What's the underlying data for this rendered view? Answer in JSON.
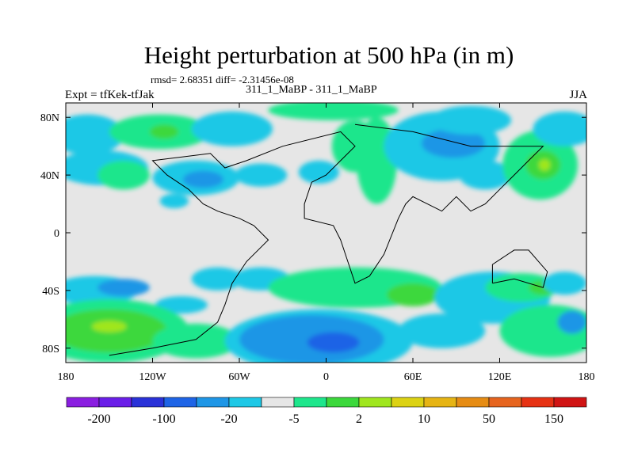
{
  "title": "Height perturbation at 500 hPa (in m)",
  "stats_text": "rmsd= 2.68351 diff= -2.31456e-08",
  "subtitle": "311_1_MaBP - 311_1_MaBP",
  "left_label": "Expt = tfKek-tfJak",
  "right_label": "JJA",
  "chart_data": {
    "type": "heatmap",
    "title": "Height perturbation at 500 hPa (in m)",
    "x_ticks": [
      "180",
      "120W",
      "60W",
      "0",
      "60E",
      "120E",
      "180"
    ],
    "x_values": [
      -180,
      -120,
      -60,
      0,
      60,
      120,
      180
    ],
    "y_ticks": [
      "80N",
      "40N",
      "0",
      "40S",
      "80S"
    ],
    "y_values": [
      80,
      40,
      0,
      -40,
      -80
    ],
    "xlim": [
      -180,
      180
    ],
    "ylim": [
      -90,
      90
    ],
    "colorbar_labels": [
      "-200",
      "-100",
      "-20",
      "-5",
      "2",
      "10",
      "50",
      "150"
    ],
    "colorbar_colors": [
      "#8a1ee0",
      "#6a1ee8",
      "#2a32d8",
      "#1e64e6",
      "#1e96e6",
      "#1ec8e6",
      "#e6e6e6",
      "#1ee68c",
      "#3cd83c",
      "#a0e61e",
      "#dcd214",
      "#e6b414",
      "#e68c14",
      "#e6641e",
      "#e63214",
      "#d01414"
    ],
    "zero_color": "#e6e6e6",
    "blobs": [
      {
        "lon": -165,
        "lat": 68,
        "rx": 25,
        "ry": 14,
        "color": "#1ec8e6"
      },
      {
        "lon": -115,
        "lat": 70,
        "rx": 35,
        "ry": 12,
        "color": "#1ee68c"
      },
      {
        "lon": -112,
        "lat": 70,
        "rx": 10,
        "ry": 5,
        "color": "#3cd83c"
      },
      {
        "lon": -65,
        "lat": 72,
        "rx": 28,
        "ry": 12,
        "color": "#1ec8e6"
      },
      {
        "lon": -155,
        "lat": 45,
        "rx": 32,
        "ry": 12,
        "color": "#1ec8e6"
      },
      {
        "lon": -140,
        "lat": 40,
        "rx": 18,
        "ry": 10,
        "color": "#1ee68c"
      },
      {
        "lon": -90,
        "lat": 38,
        "rx": 30,
        "ry": 12,
        "color": "#1ec8e6"
      },
      {
        "lon": -85,
        "lat": 37,
        "rx": 14,
        "ry": 6,
        "color": "#1e96e6"
      },
      {
        "lon": -45,
        "lat": 40,
        "rx": 18,
        "ry": 8,
        "color": "#1ec8e6"
      },
      {
        "lon": -105,
        "lat": 22,
        "rx": 10,
        "ry": 5,
        "color": "#1ec8e6"
      },
      {
        "lon": 5,
        "lat": 85,
        "rx": 45,
        "ry": 7,
        "color": "#1ee68c"
      },
      {
        "lon": 20,
        "lat": 60,
        "rx": 16,
        "ry": 18,
        "color": "#1ee68c"
      },
      {
        "lon": 35,
        "lat": 50,
        "rx": 14,
        "ry": 30,
        "color": "#1ee68c"
      },
      {
        "lon": -5,
        "lat": 42,
        "rx": 14,
        "ry": 8,
        "color": "#1ec8e6"
      },
      {
        "lon": 80,
        "lat": 60,
        "rx": 40,
        "ry": 24,
        "color": "#1ec8e6"
      },
      {
        "lon": 88,
        "lat": 62,
        "rx": 22,
        "ry": 10,
        "color": "#1e96e6"
      },
      {
        "lon": 100,
        "lat": 78,
        "rx": 28,
        "ry": 10,
        "color": "#1ec8e6"
      },
      {
        "lon": 110,
        "lat": 40,
        "rx": 18,
        "ry": 10,
        "color": "#1ec8e6"
      },
      {
        "lon": 148,
        "lat": 47,
        "rx": 26,
        "ry": 24,
        "color": "#1ee68c"
      },
      {
        "lon": 150,
        "lat": 47,
        "rx": 12,
        "ry": 10,
        "color": "#3cd83c"
      },
      {
        "lon": 151,
        "lat": 47,
        "rx": 4,
        "ry": 4,
        "color": "#a0e61e"
      },
      {
        "lon": 165,
        "lat": 72,
        "rx": 22,
        "ry": 12,
        "color": "#1ec8e6"
      },
      {
        "lon": -160,
        "lat": -40,
        "rx": 30,
        "ry": 10,
        "color": "#1ec8e6"
      },
      {
        "lon": -140,
        "lat": -38,
        "rx": 18,
        "ry": 6,
        "color": "#1e96e6"
      },
      {
        "lon": -75,
        "lat": -32,
        "rx": 18,
        "ry": 8,
        "color": "#1ec8e6"
      },
      {
        "lon": -45,
        "lat": -32,
        "rx": 20,
        "ry": 8,
        "color": "#1ec8e6"
      },
      {
        "lon": -100,
        "lat": -50,
        "rx": 18,
        "ry": 6,
        "color": "#1ec8e6"
      },
      {
        "lon": -150,
        "lat": -68,
        "rx": 55,
        "ry": 22,
        "color": "#1ee68c"
      },
      {
        "lon": -150,
        "lat": -68,
        "rx": 40,
        "ry": 15,
        "color": "#3cd83c"
      },
      {
        "lon": -150,
        "lat": -65,
        "rx": 12,
        "ry": 4,
        "color": "#a0e61e"
      },
      {
        "lon": -90,
        "lat": -75,
        "rx": 30,
        "ry": 12,
        "color": "#1ee68c"
      },
      {
        "lon": 20,
        "lat": -38,
        "rx": 60,
        "ry": 14,
        "color": "#1ee68c"
      },
      {
        "lon": 60,
        "lat": -43,
        "rx": 18,
        "ry": 8,
        "color": "#3cd83c"
      },
      {
        "lon": -5,
        "lat": -75,
        "rx": 65,
        "ry": 22,
        "color": "#1ec8e6"
      },
      {
        "lon": -10,
        "lat": -74,
        "rx": 50,
        "ry": 17,
        "color": "#1e96e6"
      },
      {
        "lon": 5,
        "lat": -76,
        "rx": 18,
        "ry": 7,
        "color": "#1e64e6"
      },
      {
        "lon": 80,
        "lat": -68,
        "rx": 30,
        "ry": 12,
        "color": "#1ec8e6"
      },
      {
        "lon": 115,
        "lat": -45,
        "rx": 40,
        "ry": 18,
        "color": "#1ec8e6"
      },
      {
        "lon": 135,
        "lat": -38,
        "rx": 25,
        "ry": 10,
        "color": "#1ee68c"
      },
      {
        "lon": 150,
        "lat": -38,
        "rx": 10,
        "ry": 5,
        "color": "#3cd83c"
      },
      {
        "lon": 165,
        "lat": -35,
        "rx": 15,
        "ry": 8,
        "color": "#1ec8e6"
      },
      {
        "lon": 155,
        "lat": -68,
        "rx": 35,
        "ry": 18,
        "color": "#1ee68c"
      },
      {
        "lon": 170,
        "lat": -62,
        "rx": 10,
        "ry": 8,
        "color": "#1e96e6"
      }
    ]
  }
}
